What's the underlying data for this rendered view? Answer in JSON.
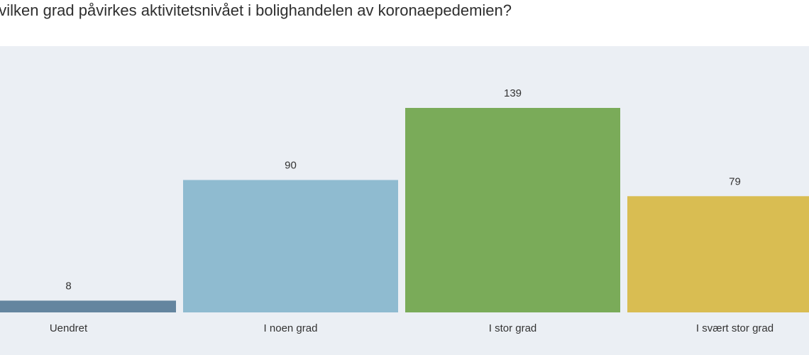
{
  "chart_data": {
    "type": "bar",
    "title": "hvilken grad påvirkes aktivitetsnivået i bolighandelen av koronaepedemien?",
    "categories": [
      "Uendret",
      "I noen grad",
      "I stor grad",
      "I svært stor grad"
    ],
    "values": [
      8,
      90,
      139,
      79
    ],
    "colors": [
      "#64859f",
      "#8fbbd0",
      "#7aab59",
      "#d9bd52"
    ],
    "xlabel": "",
    "ylabel": "",
    "ylim": [
      0,
      139
    ],
    "grid": false,
    "legend": "none"
  }
}
